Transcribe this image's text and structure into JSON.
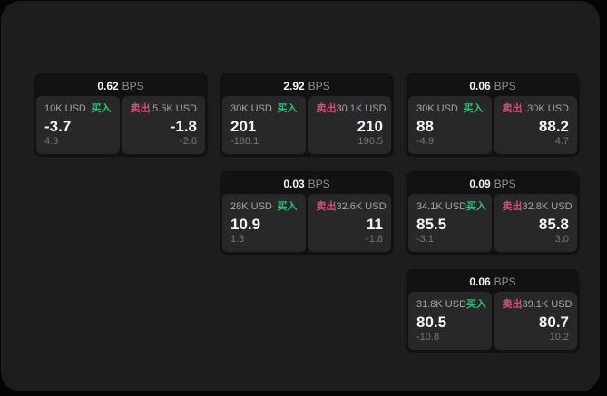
{
  "labels": {
    "bps_unit": "BPS",
    "buy": "买入",
    "sell": "卖出"
  },
  "colors": {
    "background": "#050505",
    "panel": "#1d1d1f",
    "card": "#121214",
    "pane": "#28282b",
    "buy_green": "#2fc06a",
    "sell_rose": "#cd5470",
    "primary_text": "#f4f4f6",
    "muted_text": "#8e8e93"
  },
  "cards": [
    {
      "bps": "0.62",
      "buy": {
        "amount": "10K USD",
        "value": "-3.7",
        "sub": "4.3"
      },
      "sell": {
        "amount": "5.5K USD",
        "value": "-1.8",
        "sub": "-2.6"
      }
    },
    {
      "bps": "2.92",
      "buy": {
        "amount": "30K USD",
        "value": "201",
        "sub": "-188.1"
      },
      "sell": {
        "amount": "30.1K USD",
        "value": "210",
        "sub": "196.5"
      }
    },
    {
      "bps": "0.06",
      "buy": {
        "amount": "30K USD",
        "value": "88",
        "sub": "-4.9"
      },
      "sell": {
        "amount": "30K USD",
        "value": "88.2",
        "sub": "4.7"
      }
    },
    {
      "bps": "0.03",
      "buy": {
        "amount": "28K USD",
        "value": "10.9",
        "sub": "1.3"
      },
      "sell": {
        "amount": "32.6K USD",
        "value": "11",
        "sub": "-1.8"
      }
    },
    {
      "bps": "0.09",
      "buy": {
        "amount": "34.1K USD",
        "value": "85.5",
        "sub": "-3.1"
      },
      "sell": {
        "amount": "32.8K USD",
        "value": "85.8",
        "sub": "3.0"
      }
    },
    {
      "bps": "0.06",
      "buy": {
        "amount": "31.8K USD",
        "value": "80.5",
        "sub": "-10.8"
      },
      "sell": {
        "amount": "39.1K USD",
        "value": "80.7",
        "sub": "10.2"
      }
    }
  ]
}
